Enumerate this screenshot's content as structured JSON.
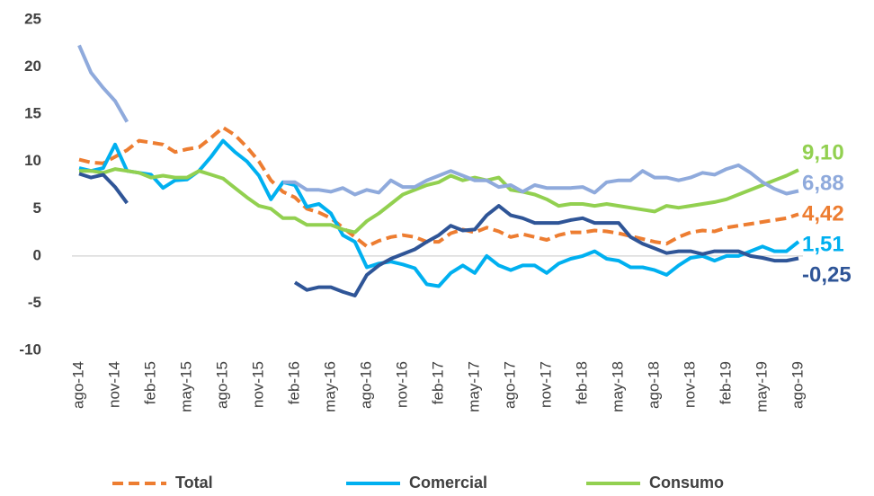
{
  "chart_data": {
    "type": "line",
    "categories": [
      "ago-14",
      null,
      null,
      "nov-14",
      null,
      null,
      "feb-15",
      null,
      null,
      "may-15",
      null,
      null,
      "ago-15",
      null,
      null,
      "nov-15",
      null,
      null,
      "feb-16",
      null,
      null,
      "may-16",
      null,
      null,
      "ago-16",
      null,
      null,
      "nov-16",
      null,
      null,
      "feb-17",
      null,
      null,
      "may-17",
      null,
      null,
      "ago-17",
      null,
      null,
      "nov-17",
      null,
      null,
      "feb-18",
      null,
      null,
      "may-18",
      null,
      null,
      "ago-18",
      null,
      null,
      "nov-18",
      null,
      null,
      "feb-19",
      null,
      null,
      "may-19",
      null,
      null,
      "ago-19"
    ],
    "series": [
      {
        "name": "Total",
        "color": "#ed7d31",
        "dash": true,
        "values": [
          10.2,
          9.9,
          9.8,
          10.5,
          11.2,
          12.2,
          12.0,
          11.8,
          11.0,
          11.3,
          11.5,
          12.5,
          13.6,
          12.8,
          11.5,
          10.0,
          8.0,
          6.8,
          6.2,
          5.0,
          4.6,
          4.0,
          3.0,
          2.0,
          1.0,
          1.6,
          2.0,
          2.2,
          2.0,
          1.5,
          1.5,
          2.4,
          2.8,
          2.5,
          3.0,
          2.6,
          2.0,
          2.3,
          2.0,
          1.7,
          2.2,
          2.5,
          2.5,
          2.7,
          2.6,
          2.4,
          2.1,
          1.8,
          1.5,
          1.3,
          2.0,
          2.5,
          2.7,
          2.6,
          3.0,
          3.2,
          3.4,
          3.6,
          3.8,
          4.0,
          4.42
        ],
        "value_labels": [
          null,
          null,
          null,
          null,
          null,
          null,
          null,
          null,
          null,
          null,
          null,
          null,
          null,
          null,
          null,
          null,
          null,
          null,
          null,
          null,
          null,
          null,
          null,
          null,
          null,
          null,
          null,
          null,
          null,
          null,
          null,
          null,
          null,
          null,
          null,
          null,
          null,
          null,
          null,
          null,
          null,
          null,
          null,
          null,
          null,
          null,
          null,
          null,
          null,
          null,
          null,
          null,
          null,
          null,
          null,
          null,
          null,
          null,
          null,
          null,
          "4,42"
        ]
      },
      {
        "name": "Comercial",
        "color": "#00b0f0",
        "values": [
          9.3,
          9.0,
          9.3,
          11.8,
          9.0,
          8.8,
          8.6,
          7.2,
          8.0,
          8.1,
          9.0,
          10.5,
          12.2,
          11.0,
          10.0,
          8.5,
          6.0,
          7.8,
          7.5,
          5.2,
          5.5,
          4.5,
          2.2,
          1.5,
          -1.2,
          -0.8,
          -0.6,
          -0.9,
          -1.3,
          -3.0,
          -3.2,
          -1.8,
          -1.0,
          -1.8,
          0.0,
          -1.0,
          -1.5,
          -1.0,
          -1.0,
          -1.8,
          -0.8,
          -0.3,
          0.0,
          0.5,
          -0.3,
          -0.5,
          -1.2,
          -1.2,
          -1.5,
          -2.0,
          -1.0,
          -0.2,
          0.0,
          -0.5,
          0.0,
          0.0,
          0.5,
          1.0,
          0.5,
          0.5,
          1.51
        ],
        "value_labels": [
          null,
          null,
          null,
          null,
          null,
          null,
          null,
          null,
          null,
          null,
          null,
          null,
          null,
          null,
          null,
          null,
          null,
          null,
          null,
          null,
          null,
          null,
          null,
          null,
          null,
          null,
          null,
          null,
          null,
          null,
          null,
          null,
          null,
          null,
          null,
          null,
          null,
          null,
          null,
          null,
          null,
          null,
          null,
          null,
          null,
          null,
          null,
          null,
          null,
          null,
          null,
          null,
          null,
          null,
          null,
          null,
          null,
          null,
          null,
          null,
          "1,51"
        ]
      },
      {
        "name": "Consumo",
        "color": "#92d050",
        "values": [
          9.0,
          9.0,
          8.8,
          9.2,
          9.0,
          8.8,
          8.3,
          8.5,
          8.3,
          8.3,
          9.0,
          8.6,
          8.2,
          7.2,
          6.2,
          5.3,
          5.0,
          4.0,
          4.0,
          3.3,
          3.3,
          3.3,
          2.8,
          2.5,
          3.7,
          4.5,
          5.5,
          6.5,
          7.0,
          7.5,
          7.8,
          8.5,
          8.0,
          8.3,
          8.0,
          8.3,
          7.0,
          6.8,
          6.5,
          6.0,
          5.3,
          5.5,
          5.5,
          5.3,
          5.5,
          5.3,
          5.1,
          4.9,
          4.7,
          5.3,
          5.1,
          5.3,
          5.5,
          5.7,
          6.0,
          6.5,
          7.0,
          7.5,
          8.0,
          8.5,
          9.1
        ],
        "value_labels": [
          null,
          null,
          null,
          null,
          null,
          null,
          null,
          null,
          null,
          null,
          null,
          null,
          null,
          null,
          null,
          null,
          null,
          null,
          null,
          null,
          null,
          null,
          null,
          null,
          null,
          null,
          null,
          null,
          null,
          null,
          null,
          null,
          null,
          null,
          null,
          null,
          null,
          null,
          null,
          null,
          null,
          null,
          null,
          null,
          null,
          null,
          null,
          null,
          null,
          null,
          null,
          null,
          null,
          null,
          null,
          null,
          null,
          null,
          null,
          null,
          "9,10"
        ]
      },
      {
        "color": "#8faadc",
        "values": [
          22.3,
          19.4,
          17.8,
          16.4,
          14.2,
          null,
          null,
          null,
          null,
          null,
          null,
          null,
          null,
          null,
          null,
          null,
          null,
          7.8,
          7.8,
          7.0,
          7.0,
          6.8,
          7.2,
          6.5,
          7.0,
          6.7,
          8.0,
          7.3,
          7.3,
          8.0,
          8.5,
          9.0,
          8.5,
          8.0,
          8.0,
          7.3,
          7.5,
          6.8,
          7.5,
          7.2,
          7.2,
          7.2,
          7.3,
          6.7,
          7.8,
          8.0,
          8.0,
          9.0,
          8.3,
          8.3,
          8.0,
          8.3,
          8.8,
          8.6,
          9.2,
          9.6,
          8.8,
          7.8,
          7.1,
          6.6,
          6.88
        ],
        "value_labels": [
          null,
          null,
          null,
          null,
          null,
          null,
          null,
          null,
          null,
          null,
          null,
          null,
          null,
          null,
          null,
          null,
          null,
          null,
          null,
          null,
          null,
          null,
          null,
          null,
          null,
          null,
          null,
          null,
          null,
          null,
          null,
          null,
          null,
          null,
          null,
          null,
          null,
          null,
          null,
          null,
          null,
          null,
          null,
          null,
          null,
          null,
          null,
          null,
          null,
          null,
          null,
          null,
          null,
          null,
          null,
          null,
          null,
          null,
          null,
          null,
          "6,88"
        ]
      },
      {
        "color": "#2f5597",
        "values": [
          8.7,
          8.3,
          8.6,
          7.3,
          5.6,
          null,
          null,
          null,
          null,
          null,
          null,
          null,
          null,
          null,
          null,
          null,
          null,
          null,
          -2.8,
          -3.6,
          -3.3,
          -3.3,
          -3.8,
          -4.2,
          -2.0,
          -1.0,
          -0.3,
          0.2,
          0.7,
          1.5,
          2.2,
          3.2,
          2.7,
          2.8,
          4.3,
          5.3,
          4.3,
          4.0,
          3.5,
          3.5,
          3.5,
          3.8,
          4.0,
          3.5,
          3.5,
          3.5,
          2.0,
          1.3,
          0.8,
          0.3,
          0.5,
          0.5,
          0.2,
          0.5,
          0.5,
          0.5,
          0.0,
          -0.2,
          -0.5,
          -0.5,
          -0.25
        ],
        "value_labels": [
          null,
          null,
          null,
          null,
          null,
          null,
          null,
          null,
          null,
          null,
          null,
          null,
          null,
          null,
          null,
          null,
          null,
          null,
          null,
          null,
          null,
          null,
          null,
          null,
          null,
          null,
          null,
          null,
          null,
          null,
          null,
          null,
          null,
          null,
          null,
          null,
          null,
          null,
          null,
          null,
          null,
          null,
          null,
          null,
          null,
          null,
          null,
          null,
          null,
          null,
          null,
          null,
          null,
          null,
          null,
          null,
          null,
          null,
          null,
          null,
          "-0,25"
        ]
      }
    ],
    "ylim": [
      -10,
      25
    ],
    "yticks": [
      -10,
      -5,
      0,
      5,
      10,
      15,
      20,
      25
    ],
    "grid": false,
    "legend": "bottom"
  }
}
